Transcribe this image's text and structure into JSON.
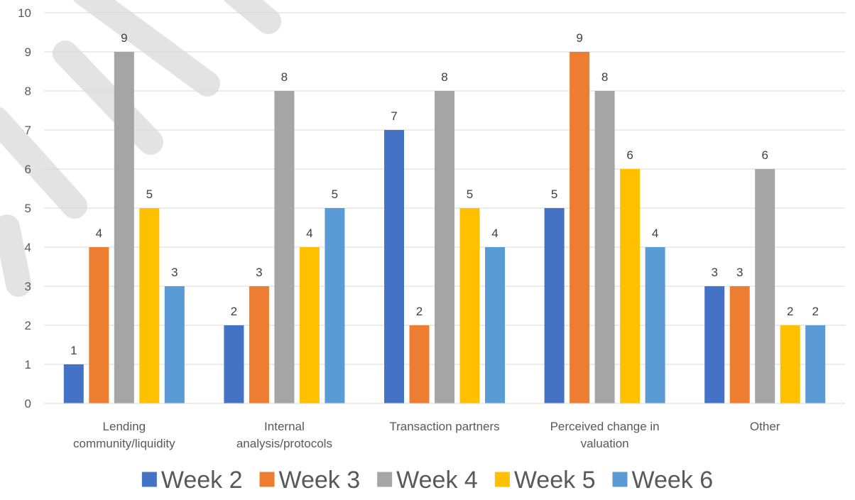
{
  "chart_data": {
    "type": "bar",
    "categories": [
      [
        "Lending",
        "community/liquidity"
      ],
      [
        "Internal",
        "analysis/protocols"
      ],
      [
        "Transaction partners"
      ],
      [
        "Perceived change in",
        "valuation"
      ],
      [
        "Other"
      ]
    ],
    "series": [
      {
        "name": "Week 2",
        "color": "#4472C4",
        "values": [
          1,
          2,
          7,
          5,
          3
        ]
      },
      {
        "name": "Week 3",
        "color": "#ED7D31",
        "values": [
          4,
          3,
          2,
          9,
          3
        ]
      },
      {
        "name": "Week 4",
        "color": "#A5A5A5",
        "values": [
          9,
          8,
          8,
          8,
          6
        ]
      },
      {
        "name": "Week 5",
        "color": "#FFC000",
        "values": [
          5,
          4,
          5,
          6,
          2
        ]
      },
      {
        "name": "Week 6",
        "color": "#5B9BD5",
        "values": [
          3,
          5,
          4,
          4,
          2
        ]
      }
    ],
    "ylim": [
      0,
      10
    ],
    "y_ticks": [
      0,
      1,
      2,
      3,
      4,
      5,
      6,
      7,
      8,
      9,
      10
    ],
    "grid": true,
    "data_labels": true,
    "legend_position": "bottom"
  }
}
